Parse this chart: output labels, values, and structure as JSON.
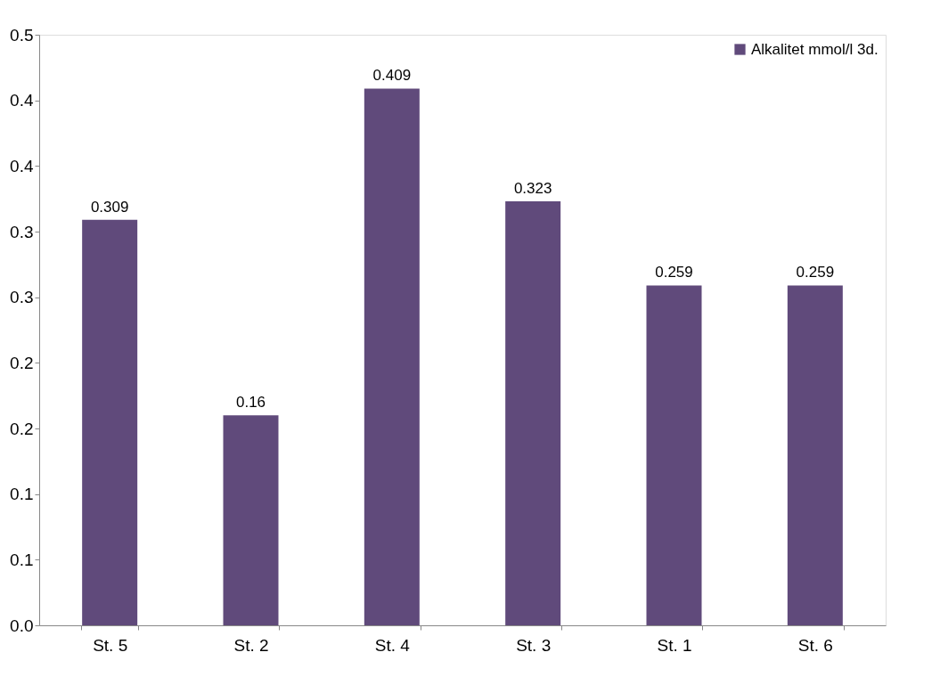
{
  "chart_data": {
    "type": "bar",
    "categories": [
      "St. 5",
      "St. 2",
      "St. 4",
      "St. 3",
      "St. 1",
      "St. 6"
    ],
    "series": [
      {
        "name": "Alkalitet mmol/l 3d.",
        "color": "#604a7b",
        "values": [
          0.309,
          0.16,
          0.409,
          0.323,
          0.259,
          0.259
        ]
      }
    ],
    "ylim": [
      0,
      0.45
    ],
    "yticks": [
      {
        "value": 0,
        "label": "0.0"
      },
      {
        "value": 0.05,
        "label": "0.1"
      },
      {
        "value": 0.1,
        "label": "0.1"
      },
      {
        "value": 0.15,
        "label": "0.2"
      },
      {
        "value": 0.2,
        "label": "0.2"
      },
      {
        "value": 0.25,
        "label": "0.3"
      },
      {
        "value": 0.3,
        "label": "0.3"
      },
      {
        "value": 0.35,
        "label": "0.4"
      },
      {
        "value": 0.4,
        "label": "0.4"
      },
      {
        "value": 0.45,
        "label": "0.5"
      }
    ],
    "data_labels": true,
    "grid": false,
    "legend": "top right"
  }
}
